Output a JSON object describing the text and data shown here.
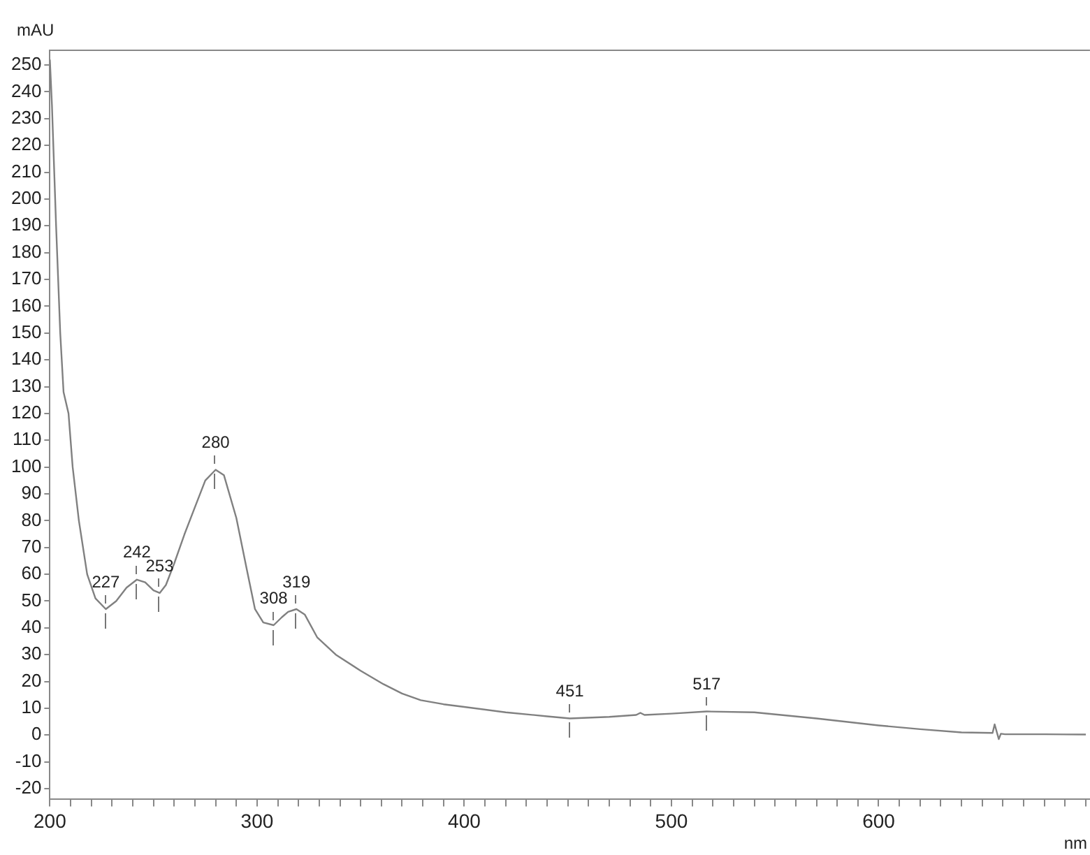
{
  "chart_data": {
    "type": "line",
    "xlabel": "nm",
    "ylabel": "mAU",
    "xlim": [
      200,
      702
    ],
    "ylim": [
      -24,
      255.5
    ],
    "xticks": [
      200,
      {
        "value": 210,
        "label": null
      },
      {
        "value": 220,
        "label": null
      },
      {
        "value": 230,
        "label": null
      },
      {
        "value": 240,
        "label": null
      },
      {
        "value": 250,
        "label": null
      },
      {
        "value": 260,
        "label": null
      },
      {
        "value": 270,
        "label": null
      },
      {
        "value": 280,
        "label": null
      },
      {
        "value": 290,
        "label": null
      },
      300,
      {
        "value": 310,
        "label": null
      },
      {
        "value": 320,
        "label": null
      },
      {
        "value": 330,
        "label": null
      },
      {
        "value": 340,
        "label": null
      },
      {
        "value": 350,
        "label": null
      },
      {
        "value": 360,
        "label": null
      },
      {
        "value": 370,
        "label": null
      },
      {
        "value": 380,
        "label": null
      },
      {
        "value": 390,
        "label": null
      },
      400,
      {
        "value": 410,
        "label": null
      },
      {
        "value": 420,
        "label": null
      },
      {
        "value": 430,
        "label": null
      },
      {
        "value": 440,
        "label": null
      },
      {
        "value": 450,
        "label": null
      },
      {
        "value": 460,
        "label": null
      },
      {
        "value": 470,
        "label": null
      },
      {
        "value": 480,
        "label": null
      },
      {
        "value": 490,
        "label": null
      },
      500,
      {
        "value": 510,
        "label": null
      },
      {
        "value": 520,
        "label": null
      },
      {
        "value": 530,
        "label": null
      },
      {
        "value": 540,
        "label": null
      },
      {
        "value": 550,
        "label": null
      },
      {
        "value": 560,
        "label": null
      },
      {
        "value": 570,
        "label": null
      },
      {
        "value": 580,
        "label": null
      },
      {
        "value": 590,
        "label": null
      },
      600,
      {
        "value": 610,
        "label": null
      },
      {
        "value": 620,
        "label": null
      },
      {
        "value": 630,
        "label": null
      },
      {
        "value": 640,
        "label": null
      },
      {
        "value": 650,
        "label": null
      },
      {
        "value": 660,
        "label": null
      },
      {
        "value": 670,
        "label": null
      },
      {
        "value": 680,
        "label": null
      },
      {
        "value": 690,
        "label": null
      },
      {
        "value": 700,
        "label": null
      }
    ],
    "yticks": [
      -20,
      -10,
      0,
      10,
      20,
      30,
      40,
      50,
      60,
      70,
      80,
      90,
      100,
      110,
      120,
      130,
      140,
      150,
      160,
      170,
      180,
      190,
      200,
      210,
      220,
      230,
      240,
      250
    ],
    "grid": false,
    "legend": false,
    "marker": "none",
    "line_style": "solid",
    "series": [
      {
        "color": "#808080",
        "x": [
          200,
          201,
          203,
          205,
          206.6,
          209,
          211,
          214,
          218,
          222,
          227,
          232,
          237,
          242,
          246,
          250,
          253,
          256,
          260,
          265,
          270,
          275,
          280,
          284,
          290,
          295,
          299,
          303,
          308,
          312,
          315,
          319,
          323,
          329,
          338,
          350,
          361,
          370,
          379,
          390,
          400,
          420,
          440,
          451,
          470,
          483,
          485,
          487,
          500,
          517,
          540,
          570,
          600,
          620,
          640,
          655,
          656,
          658,
          659,
          661,
          680,
          700
        ],
        "values": [
          252,
          235,
          190,
          150,
          128,
          120,
          100,
          80,
          60,
          51,
          47,
          50,
          55,
          58,
          57,
          54,
          53,
          56,
          64,
          75,
          85,
          95,
          99,
          97,
          81,
          62,
          47,
          42,
          41,
          44,
          46,
          47,
          45,
          36.5,
          30,
          24,
          19,
          15.5,
          13,
          11.5,
          10.5,
          8.5,
          7,
          6.2,
          6.8,
          7.5,
          8.3,
          7.5,
          8,
          8.8,
          8.5,
          6.2,
          3.6,
          2.2,
          1,
          0.8,
          4,
          -1.5,
          0.5,
          0.3,
          0.3,
          0.2
        ]
      }
    ],
    "annotations": [
      {
        "text": "227",
        "x": 227,
        "y": 47
      },
      {
        "text": "242",
        "x": 242,
        "y": 58
      },
      {
        "text": "253",
        "x": 253,
        "y": 53
      },
      {
        "text": "280",
        "x": 280,
        "y": 99
      },
      {
        "text": "308",
        "x": 308,
        "y": 41
      },
      {
        "text": "319",
        "x": 319,
        "y": 47
      },
      {
        "text": "451",
        "x": 451,
        "y": 6.2
      },
      {
        "text": "517",
        "x": 517,
        "y": 8.8
      }
    ]
  }
}
